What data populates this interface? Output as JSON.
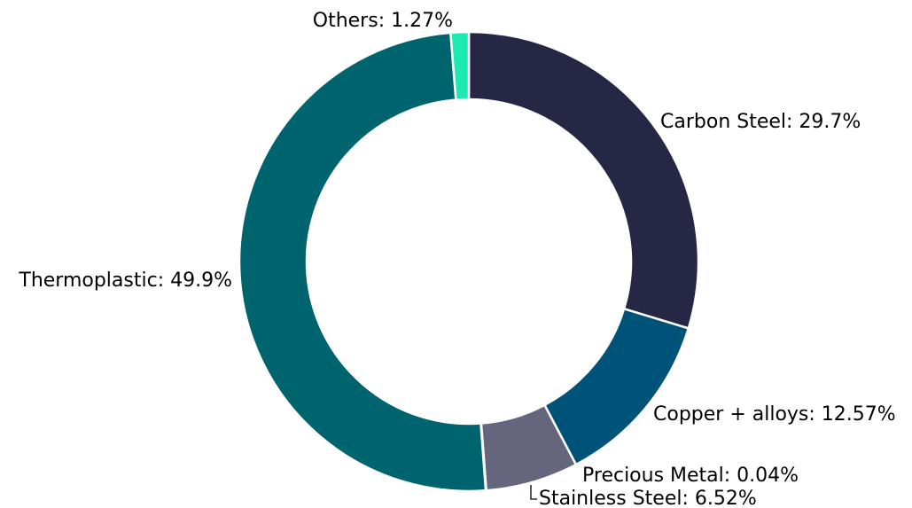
{
  "chart_data": {
    "type": "pie",
    "donut": true,
    "start_angle_deg": 90,
    "direction": "clockwise",
    "legend": "none",
    "slices": [
      {
        "name": "Carbon Steel",
        "value": 29.7,
        "label": "Carbon Steel: 29.7%",
        "color": "#262645"
      },
      {
        "name": "Copper + alloys",
        "value": 12.57,
        "label": "Copper + alloys: 12.57%",
        "color": "#005378"
      },
      {
        "name": "Stainless Steel",
        "value": 6.52,
        "label": "Stainless Steel: 6.52%",
        "color": "#65657D"
      },
      {
        "name": "Precious Metal",
        "value": 0.04,
        "label": "Precious Metal: 0.04%",
        "color": "#8FD3F5"
      },
      {
        "name": "Thermoplastic",
        "value": 49.9,
        "label": "Thermoplastic: 49.9%",
        "color": "#00646E"
      },
      {
        "name": "Others",
        "value": 1.27,
        "label": "Others: 1.27%",
        "color": "#1CEAB0"
      }
    ]
  }
}
